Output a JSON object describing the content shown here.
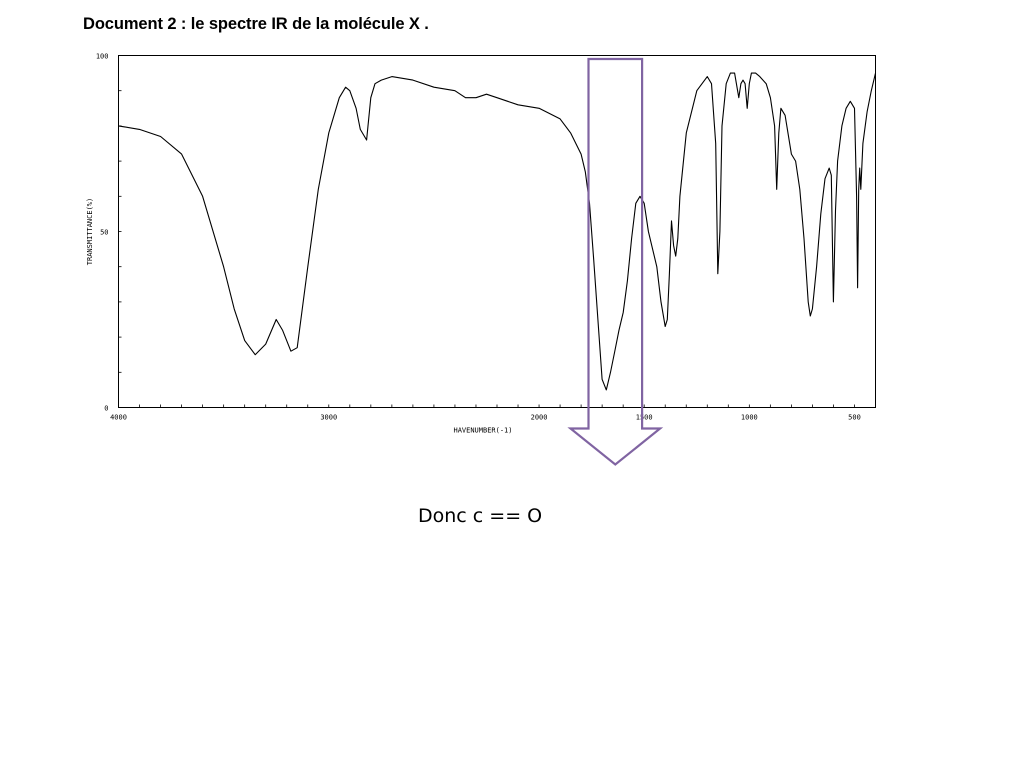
{
  "document_title": "Document 2 : le spectre IR de la molécule X .",
  "conclusion_text": "Donc c == O",
  "colors": {
    "spectrum": "#000000",
    "arrow": "#8064a2"
  },
  "chart_data": {
    "type": "line",
    "title": "",
    "xlabel": "HAVENUMBER(-1)",
    "ylabel": "TRANSMITTANCE(%)",
    "xlim": [
      4000,
      400
    ],
    "ylim": [
      0,
      100
    ],
    "x_ticks": [
      {
        "value": 4000,
        "label": "4000"
      },
      {
        "value": 3000,
        "label": "3000"
      },
      {
        "value": 2000,
        "label": "2000"
      },
      {
        "value": 1500,
        "label": "1500"
      },
      {
        "value": 1000,
        "label": "1000"
      },
      {
        "value": 500,
        "label": "500"
      }
    ],
    "y_ticks": [
      {
        "value": 0,
        "label": "0"
      },
      {
        "value": 50,
        "label": "50"
      },
      {
        "value": 100,
        "label": "100"
      }
    ],
    "series": [
      {
        "x": [
          4000,
          3900,
          3800,
          3700,
          3600,
          3500,
          3450,
          3400,
          3350,
          3300,
          3250,
          3220,
          3180,
          3150,
          3100,
          3050,
          3000,
          2950,
          2920,
          2900,
          2870,
          2850,
          2820,
          2800,
          2780,
          2750,
          2700,
          2600,
          2500,
          2400,
          2350,
          2300,
          2250,
          2200,
          2100,
          2000,
          1900,
          1850,
          1800,
          1780,
          1760,
          1740,
          1720,
          1700,
          1680,
          1660,
          1640,
          1620,
          1600,
          1580,
          1560,
          1540,
          1520,
          1500,
          1480,
          1460,
          1440,
          1420,
          1400,
          1390,
          1380,
          1370,
          1360,
          1350,
          1340,
          1330,
          1300,
          1250,
          1200,
          1180,
          1160,
          1150,
          1140,
          1130,
          1110,
          1090,
          1070,
          1050,
          1040,
          1030,
          1020,
          1010,
          1000,
          990,
          970,
          950,
          920,
          900,
          880,
          870,
          860,
          850,
          830,
          800,
          780,
          760,
          740,
          720,
          710,
          700,
          680,
          660,
          640,
          620,
          610,
          600,
          590,
          580,
          560,
          540,
          520,
          500,
          490,
          485,
          480,
          475,
          470,
          460,
          440,
          420,
          400
        ],
        "y": [
          80,
          79,
          77,
          72,
          60,
          40,
          28,
          19,
          15,
          18,
          25,
          22,
          16,
          17,
          40,
          62,
          78,
          88,
          91,
          90,
          85,
          79,
          76,
          88,
          92,
          93,
          94,
          93,
          91,
          90,
          88,
          88,
          89,
          88,
          86,
          85,
          82,
          78,
          72,
          67,
          58,
          42,
          25,
          8,
          5,
          10,
          16,
          22,
          27,
          36,
          48,
          58,
          60,
          58,
          50,
          45,
          40,
          30,
          23,
          25,
          38,
          53,
          46,
          43,
          48,
          60,
          78,
          90,
          94,
          92,
          75,
          38,
          50,
          80,
          92,
          95,
          95,
          88,
          92,
          93,
          92,
          85,
          92,
          95,
          95,
          94,
          92,
          88,
          80,
          62,
          78,
          85,
          83,
          72,
          70,
          62,
          48,
          30,
          26,
          28,
          40,
          55,
          65,
          68,
          66,
          30,
          56,
          70,
          80,
          85,
          87,
          85,
          60,
          34,
          62,
          68,
          62,
          75,
          84,
          90,
          95
        ]
      }
    ],
    "annotations": [
      {
        "type": "down-arrow",
        "x_from": 1765,
        "x_to": 1510,
        "y_top": 99,
        "label": ""
      }
    ]
  }
}
